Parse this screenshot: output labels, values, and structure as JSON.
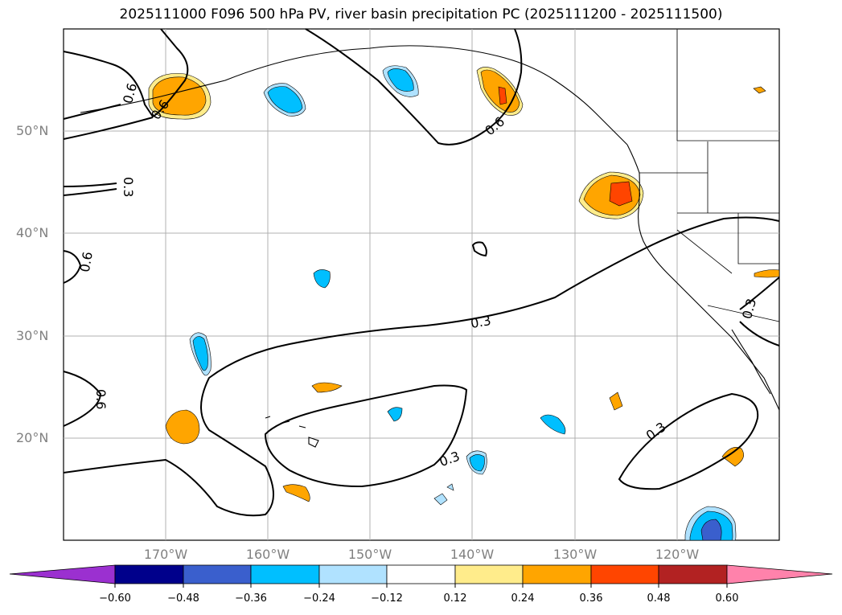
{
  "title": "2025111000 F096 500 hPa PV, river basin precipitation PC (2025111200 - 2025111500)",
  "lat_labels": [
    "50°N",
    "40°N",
    "30°N",
    "20°N"
  ],
  "lon_labels": [
    "170°W",
    "160°W",
    "150°W",
    "140°W",
    "130°W",
    "120°W"
  ],
  "contour_labels": [
    "0.6",
    "0.6",
    "0.6",
    "0.3",
    "0.6",
    "0.6",
    "0.3",
    "0.3",
    "0.3",
    "0.3"
  ],
  "colorbar": {
    "ticks": [
      "−0.60",
      "−0.48",
      "−0.36",
      "−0.24",
      "−0.12",
      "0.12",
      "0.24",
      "0.36",
      "0.48",
      "0.60"
    ],
    "colors": [
      "#9b30d0",
      "#00008b",
      "#3a5fcd",
      "#00bfff",
      "#b0e2ff",
      "#ffffff",
      "#ffec8b",
      "#ffa500",
      "#ff4500",
      "#b22222",
      "#ff82ab"
    ]
  },
  "colors": {
    "land_outline": "#000000",
    "grid": "#b0b0b0",
    "label_grey": "#808080"
  }
}
